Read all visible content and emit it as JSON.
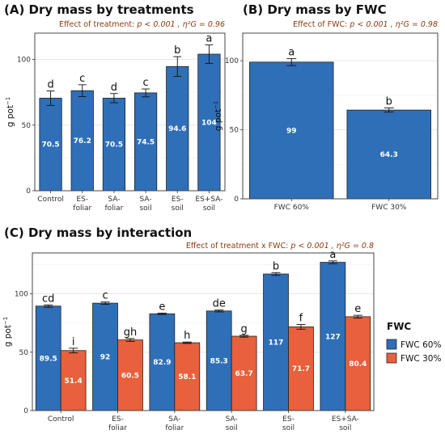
{
  "colors": {
    "fwc60": "#2f6fb8",
    "fwc30": "#e8603c",
    "panel_border": "#444444",
    "grid": "#e6e6e6",
    "subtitle": "#8b3a0e"
  },
  "chart_data": [
    {
      "type": "bar",
      "title": "(A) Dry mass by treatments",
      "subtitle_prefix": "Effect of treatment: ",
      "subtitle_stats": "p < 0.001 , η²G = 0.96",
      "ylabel": "g pot",
      "ylabel_sup": "−1",
      "ylim": [
        0,
        120
      ],
      "yticks": [
        0,
        50,
        100
      ],
      "categories": [
        [
          "Control"
        ],
        [
          "ES-",
          "foliar"
        ],
        [
          "SA-",
          "foliar"
        ],
        [
          "SA-",
          "soil"
        ],
        [
          "ES-",
          "soil"
        ],
        [
          "ES+SA-",
          "soil"
        ]
      ],
      "values": [
        70.5,
        76.2,
        70.5,
        74.5,
        94.6,
        104
      ],
      "value_labels": [
        "70.5",
        "76.2",
        "70.5",
        "74.5",
        "94.6",
        "104"
      ],
      "errors": [
        5.5,
        4.5,
        3.5,
        3.0,
        7.5,
        7.0
      ],
      "letters": [
        "d",
        "c",
        "d",
        "c",
        "b",
        "a"
      ]
    },
    {
      "type": "bar",
      "title": "(B) Dry mass by FWC",
      "subtitle_prefix": "Effect of FWC: ",
      "subtitle_stats": "p < 0.001 , η²G = 0.98",
      "ylabel": "g pot",
      "ylabel_sup": "−1",
      "ylim": [
        0,
        120
      ],
      "yticks": [
        0,
        50,
        100
      ],
      "categories": [
        [
          "FWC 60%"
        ],
        [
          "FWC 30%"
        ]
      ],
      "values": [
        99,
        64.3
      ],
      "value_labels": [
        "99",
        "64.3"
      ],
      "errors": [
        2.5,
        1.5
      ],
      "letters": [
        "a",
        "b"
      ]
    },
    {
      "type": "bar",
      "title": "(C) Dry mass by interaction",
      "subtitle_prefix": "Effect of treatment x FWC: ",
      "subtitle_stats": "p < 0.001 , η²G = 0.8",
      "ylabel": "g pot",
      "ylabel_sup": "−1",
      "ylim": [
        0,
        135
      ],
      "yticks": [
        0,
        50,
        100
      ],
      "categories": [
        [
          "Control"
        ],
        [
          "ES-",
          "foliar"
        ],
        [
          "SA-",
          "foliar"
        ],
        [
          "SA-",
          "soil"
        ],
        [
          "ES-",
          "soil"
        ],
        [
          "ES+SA-",
          "soil"
        ]
      ],
      "legend_title": "FWC",
      "legend_position": "right",
      "series": [
        {
          "name": "FWC 60%",
          "values": [
            89.5,
            92,
            82.9,
            85.3,
            117,
            127
          ],
          "value_labels": [
            "89.5",
            "92",
            "82.9",
            "85.3",
            "117",
            "127"
          ],
          "errors": [
            1.0,
            1.0,
            0.6,
            0.8,
            1.2,
            1.2
          ],
          "letters": [
            "cd",
            "c",
            "e",
            "de",
            "b",
            "a"
          ]
        },
        {
          "name": "FWC 30%",
          "values": [
            51.4,
            60.5,
            58.1,
            63.7,
            71.7,
            80.4
          ],
          "value_labels": [
            "51.4",
            "60.5",
            "58.1",
            "63.7",
            "71.7",
            "80.4"
          ],
          "errors": [
            2.0,
            1.2,
            0.6,
            0.8,
            2.0,
            1.2
          ],
          "letters": [
            "i",
            "gh",
            "h",
            "g",
            "f",
            "e"
          ]
        }
      ]
    }
  ]
}
